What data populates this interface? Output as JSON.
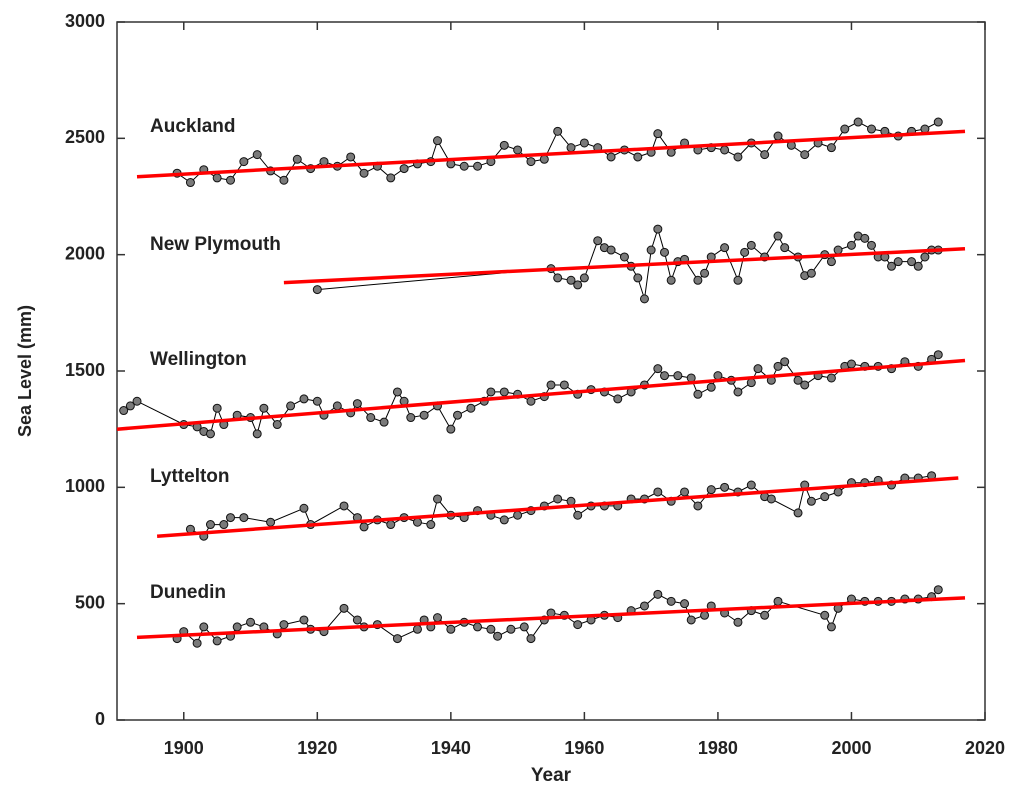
{
  "chart_data": {
    "type": "line",
    "xlabel": "Year",
    "ylabel": "Sea Level (mm)",
    "xlim": [
      1890,
      2020
    ],
    "xticks": [
      1900,
      1920,
      1940,
      1960,
      1980,
      2000,
      2020
    ],
    "ylim": [
      0,
      3000
    ],
    "yticks": [
      0,
      500,
      1000,
      1500,
      2000,
      2500,
      3000
    ],
    "series": [
      {
        "name": "Auckland",
        "color": "#000000",
        "marker_color": "#7a7a7a",
        "x": [
          1899,
          1901,
          1903,
          1905,
          1907,
          1909,
          1911,
          1913,
          1915,
          1917,
          1919,
          1921,
          1923,
          1925,
          1927,
          1929,
          1931,
          1933,
          1935,
          1937,
          1938,
          1940,
          1942,
          1944,
          1946,
          1948,
          1950,
          1952,
          1954,
          1956,
          1958,
          1960,
          1962,
          1964,
          1966,
          1968,
          1970,
          1971,
          1973,
          1975,
          1977,
          1979,
          1981,
          1983,
          1985,
          1987,
          1989,
          1991,
          1993,
          1995,
          1997,
          1999,
          2001,
          2003,
          2005,
          2007,
          2009,
          2011,
          2013
        ],
        "values": [
          2350,
          2310,
          2365,
          2330,
          2320,
          2400,
          2430,
          2360,
          2320,
          2410,
          2370,
          2400,
          2380,
          2420,
          2350,
          2380,
          2330,
          2370,
          2390,
          2400,
          2490,
          2390,
          2380,
          2380,
          2400,
          2470,
          2450,
          2400,
          2410,
          2530,
          2460,
          2480,
          2460,
          2420,
          2450,
          2420,
          2440,
          2520,
          2440,
          2480,
          2450,
          2460,
          2450,
          2420,
          2480,
          2430,
          2510,
          2470,
          2430,
          2480,
          2460,
          2540,
          2570,
          2540,
          2530,
          2510,
          2530,
          2540,
          2570
        ]
      },
      {
        "name": "New Plymouth",
        "color": "#000000",
        "marker_color": "#7a7a7a",
        "x": [
          1920,
          1955,
          1956,
          1958,
          1959,
          1960,
          1962,
          1963,
          1964,
          1966,
          1967,
          1968,
          1969,
          1970,
          1971,
          1972,
          1973,
          1974,
          1975,
          1977,
          1978,
          1979,
          1981,
          1983,
          1984,
          1985,
          1987,
          1989,
          1990,
          1992,
          1993,
          1994,
          1996,
          1997,
          1998,
          2000,
          2001,
          2002,
          2003,
          2004,
          2005,
          2006,
          2007,
          2009,
          2010,
          2011,
          2012,
          2013
        ],
        "values": [
          1850,
          1940,
          1900,
          1890,
          1870,
          1900,
          2060,
          2030,
          2020,
          1990,
          1950,
          1900,
          1810,
          2020,
          2110,
          2010,
          1890,
          1970,
          1980,
          1890,
          1920,
          1990,
          2030,
          1890,
          2010,
          2040,
          1990,
          2080,
          2030,
          1990,
          1910,
          1920,
          2000,
          1970,
          2020,
          2040,
          2080,
          2070,
          2040,
          1990,
          1990,
          1950,
          1970,
          1970,
          1950,
          1990,
          2020,
          2020
        ]
      },
      {
        "name": "Wellington",
        "color": "#000000",
        "marker_color": "#7a7a7a",
        "x": [
          1891,
          1892,
          1893,
          1900,
          1902,
          1903,
          1904,
          1905,
          1906,
          1908,
          1910,
          1911,
          1912,
          1914,
          1916,
          1918,
          1920,
          1921,
          1923,
          1925,
          1926,
          1928,
          1930,
          1932,
          1933,
          1934,
          1936,
          1938,
          1940,
          1941,
          1943,
          1945,
          1946,
          1948,
          1950,
          1952,
          1954,
          1955,
          1957,
          1959,
          1961,
          1963,
          1965,
          1967,
          1969,
          1971,
          1972,
          1974,
          1976,
          1977,
          1979,
          1980,
          1982,
          1983,
          1985,
          1986,
          1988,
          1989,
          1990,
          1992,
          1993,
          1995,
          1997,
          1999,
          2000,
          2002,
          2004,
          2006,
          2008,
          2010,
          2012,
          2013
        ],
        "values": [
          1330,
          1350,
          1370,
          1270,
          1260,
          1240,
          1230,
          1340,
          1270,
          1310,
          1300,
          1230,
          1340,
          1270,
          1350,
          1380,
          1370,
          1310,
          1350,
          1320,
          1360,
          1300,
          1280,
          1410,
          1370,
          1300,
          1310,
          1350,
          1250,
          1310,
          1340,
          1370,
          1410,
          1410,
          1400,
          1370,
          1390,
          1440,
          1440,
          1400,
          1420,
          1410,
          1380,
          1410,
          1440,
          1510,
          1480,
          1480,
          1470,
          1400,
          1430,
          1480,
          1460,
          1410,
          1450,
          1510,
          1460,
          1520,
          1540,
          1460,
          1440,
          1480,
          1470,
          1520,
          1530,
          1520,
          1520,
          1510,
          1540,
          1520,
          1550,
          1570
        ]
      },
      {
        "name": "Lyttelton",
        "color": "#000000",
        "marker_color": "#7a7a7a",
        "x": [
          1901,
          1903,
          1904,
          1906,
          1907,
          1909,
          1913,
          1918,
          1919,
          1924,
          1926,
          1927,
          1929,
          1931,
          1933,
          1935,
          1937,
          1938,
          1940,
          1942,
          1944,
          1946,
          1948,
          1950,
          1952,
          1954,
          1956,
          1958,
          1959,
          1961,
          1963,
          1965,
          1967,
          1969,
          1971,
          1973,
          1975,
          1977,
          1979,
          1981,
          1983,
          1985,
          1987,
          1988,
          1992,
          1993,
          1994,
          1996,
          1998,
          2000,
          2002,
          2004,
          2006,
          2008,
          2010,
          2012
        ],
        "values": [
          820,
          790,
          840,
          840,
          870,
          870,
          850,
          910,
          840,
          920,
          870,
          830,
          860,
          840,
          870,
          850,
          840,
          950,
          880,
          870,
          900,
          880,
          860,
          880,
          900,
          920,
          950,
          940,
          880,
          920,
          920,
          920,
          950,
          950,
          980,
          940,
          980,
          920,
          990,
          1000,
          980,
          1010,
          960,
          950,
          890,
          1010,
          940,
          960,
          980,
          1020,
          1020,
          1030,
          1010,
          1040,
          1040,
          1050
        ]
      },
      {
        "name": "Dunedin",
        "color": "#000000",
        "marker_color": "#7a7a7a",
        "x": [
          1899,
          1900,
          1902,
          1903,
          1905,
          1907,
          1908,
          1910,
          1912,
          1914,
          1915,
          1918,
          1919,
          1921,
          1924,
          1926,
          1927,
          1929,
          1932,
          1935,
          1936,
          1937,
          1938,
          1940,
          1942,
          1944,
          1946,
          1947,
          1949,
          1951,
          1952,
          1954,
          1955,
          1957,
          1959,
          1961,
          1963,
          1965,
          1967,
          1969,
          1971,
          1973,
          1975,
          1976,
          1978,
          1979,
          1981,
          1983,
          1985,
          1987,
          1989,
          1996,
          1997,
          1998,
          2000,
          2002,
          2004,
          2006,
          2008,
          2010,
          2012,
          2013
        ],
        "values": [
          350,
          380,
          330,
          400,
          340,
          360,
          400,
          420,
          400,
          370,
          410,
          430,
          390,
          380,
          480,
          430,
          400,
          410,
          350,
          390,
          430,
          400,
          440,
          390,
          420,
          400,
          390,
          360,
          390,
          400,
          350,
          430,
          460,
          450,
          410,
          430,
          450,
          440,
          470,
          490,
          540,
          510,
          500,
          430,
          450,
          490,
          460,
          420,
          470,
          450,
          510,
          450,
          400,
          480,
          520,
          510,
          510,
          510,
          520,
          520,
          530,
          560
        ]
      },
      {
        "color": "#ff0000",
        "x": [
          1893,
          2017
        ],
        "values": [
          2335,
          2530
        ]
      },
      {
        "color": "#ff0000",
        "x": [
          1915,
          2017
        ],
        "values": [
          1880,
          2025
        ]
      },
      {
        "color": "#ff0000",
        "x": [
          1890,
          2017
        ],
        "values": [
          1250,
          1545
        ]
      },
      {
        "color": "#ff0000",
        "x": [
          1896,
          2016
        ],
        "values": [
          790,
          1040
        ]
      },
      {
        "color": "#ff0000",
        "x": [
          1893,
          2017
        ],
        "values": [
          355,
          525
        ]
      }
    ]
  }
}
